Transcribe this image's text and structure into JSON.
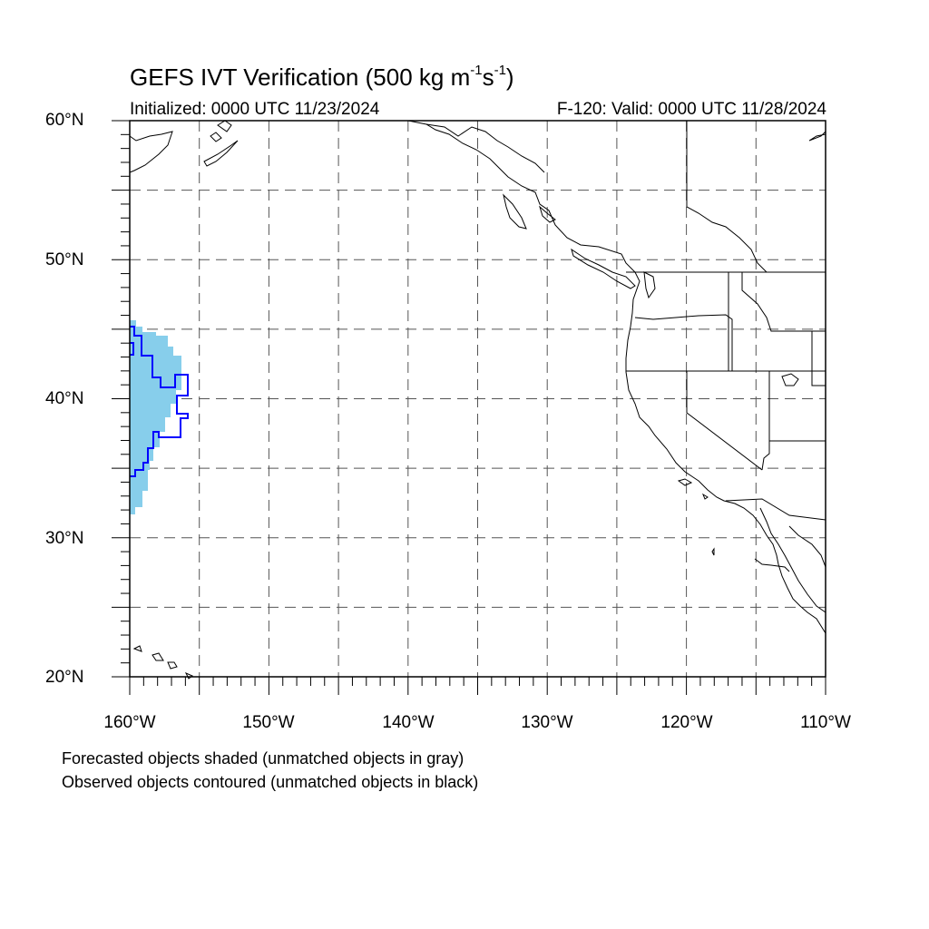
{
  "title": {
    "prefix": "GEFS IVT Verification (500 kg m",
    "exp1": "-1",
    "mid": "s",
    "exp2": "-1",
    "suffix": ")"
  },
  "subtitle": {
    "initialized": "Initialized: 0000 UTC 11/23/2024",
    "valid": "F-120: Valid: 0000 UTC 11/28/2024"
  },
  "map": {
    "lon_range": [
      -160,
      -110
    ],
    "lat_range": [
      20,
      60
    ],
    "lat_labels": [
      "60°N",
      "50°N",
      "40°N",
      "30°N",
      "20°N"
    ],
    "lon_labels": [
      "160°W",
      "150°W",
      "140°W",
      "130°W",
      "120°W",
      "110°W"
    ],
    "forecast_fill_color": "#87ceeb",
    "observed_contour_color": "#0000ff",
    "coastline_color": "#000000",
    "gridline_style": "dashed"
  },
  "footer": {
    "line1": "Forecasted objects shaded (unmatched objects in gray)",
    "line2": "Observed objects contoured (unmatched objects in black)"
  }
}
